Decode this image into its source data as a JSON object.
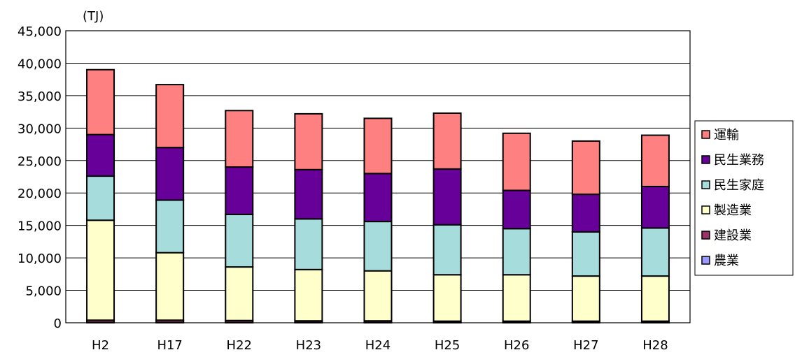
{
  "chart_data": {
    "type": "bar",
    "stacked": true,
    "unit_label": "(TJ)",
    "title": "",
    "xlabel": "",
    "ylabel": "",
    "ylim": [
      0,
      45000
    ],
    "y_ticks": [
      "0",
      "5,000",
      "10,000",
      "15,000",
      "20,000",
      "25,000",
      "30,000",
      "35,000",
      "40,000",
      "45,000"
    ],
    "y_tick_values": [
      0,
      5000,
      10000,
      15000,
      20000,
      25000,
      30000,
      35000,
      40000,
      45000
    ],
    "grid": true,
    "legend_position": "right",
    "categories": [
      "H2",
      "H17",
      "H22",
      "H23",
      "H24",
      "H25",
      "H26",
      "H27",
      "H28"
    ],
    "series": [
      {
        "name": "農業",
        "color": "#9999ff",
        "values": [
          50,
          50,
          50,
          50,
          50,
          50,
          50,
          50,
          50
        ]
      },
      {
        "name": "建設業",
        "color": "#993366",
        "values": [
          350,
          350,
          300,
          250,
          250,
          200,
          200,
          200,
          200
        ]
      },
      {
        "name": "製造業",
        "color": "#ffffcc",
        "values": [
          15400,
          10400,
          8250,
          7900,
          7700,
          7150,
          7150,
          6950,
          6950
        ]
      },
      {
        "name": "民生家庭",
        "color": "#a6dcdc",
        "values": [
          6800,
          8100,
          8100,
          7800,
          7600,
          7700,
          7100,
          6800,
          7400
        ]
      },
      {
        "name": "民生業務",
        "color": "#660099",
        "values": [
          6400,
          8100,
          7300,
          7600,
          7400,
          8600,
          5900,
          5800,
          6400
        ]
      },
      {
        "name": "運輸",
        "color": "#ff8080",
        "values": [
          10000,
          9700,
          8700,
          8600,
          8500,
          8600,
          8800,
          8200,
          7900
        ]
      }
    ],
    "legend_order": [
      "運輸",
      "民生業務",
      "民生家庭",
      "製造業",
      "建設業",
      "農業"
    ]
  }
}
